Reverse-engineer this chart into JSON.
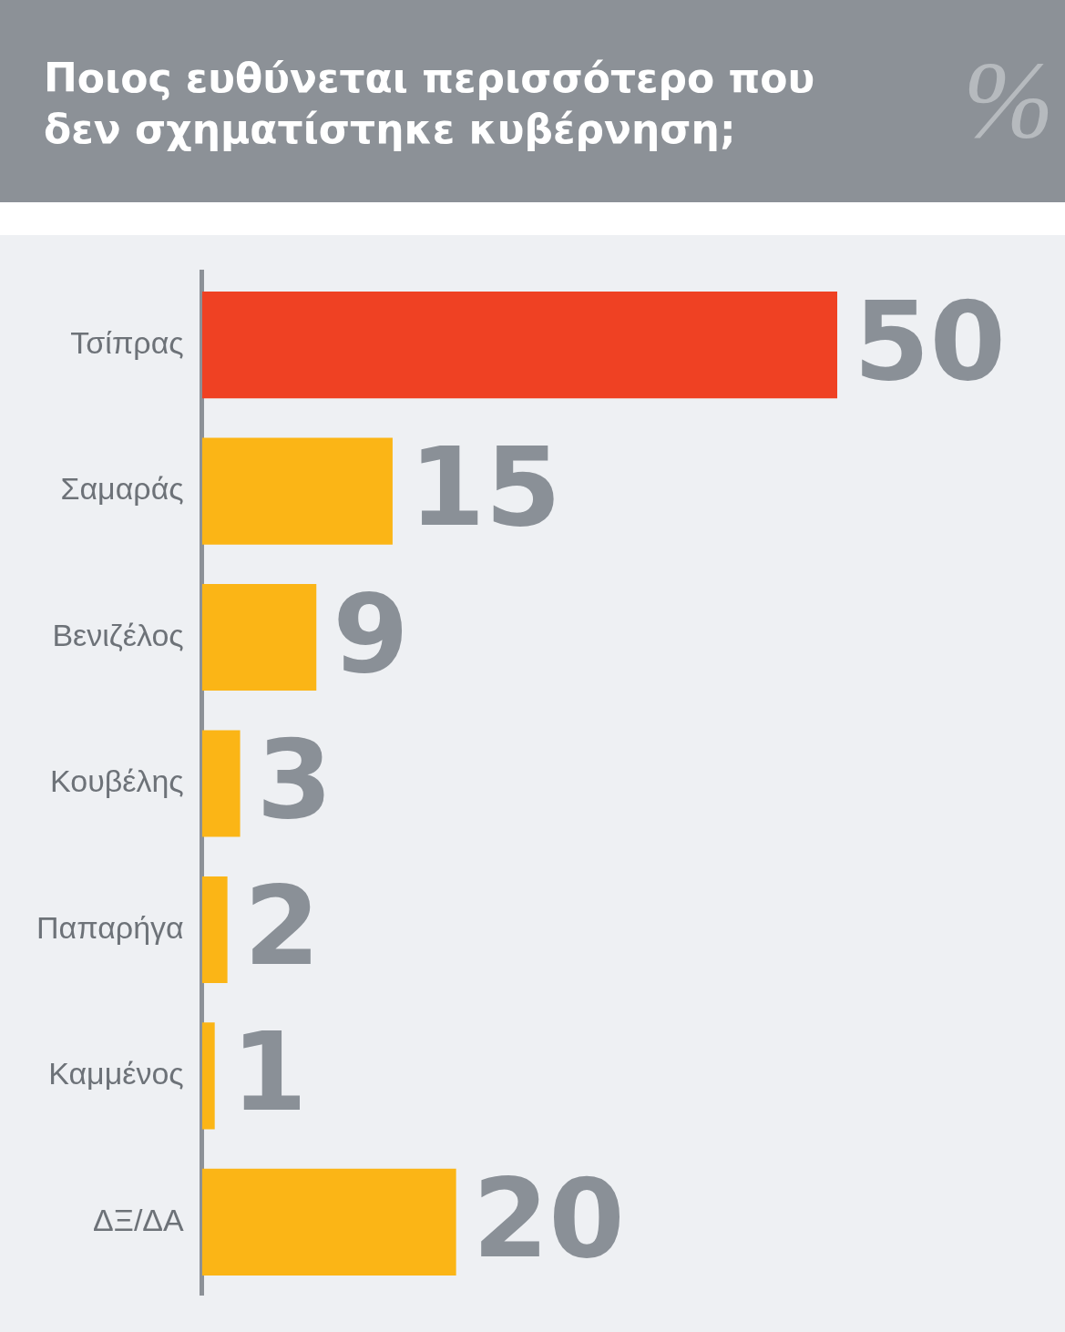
{
  "chart_data": {
    "type": "bar",
    "orientation": "horizontal",
    "title": "Ποιος ευθύνεται περισσότερο που δεν σχηματίστηκε κυβέρνηση;",
    "annotations": [
      "%"
    ],
    "categories": [
      "Τσίπρας",
      "Σαμαράς",
      "Βενιζέλος",
      "Κουβέλης",
      "Παπαρήγα",
      "Καμμένος",
      "ΔΞ/ΔΑ"
    ],
    "values": [
      50,
      15,
      9,
      3,
      2,
      1,
      20
    ],
    "colors": [
      "#ef4123",
      "#fbb516",
      "#fbb516",
      "#fbb516",
      "#fbb516",
      "#fbb516",
      "#fbb516"
    ],
    "tick_labels": "y",
    "grid": false,
    "legend": false,
    "data_labels": true
  }
}
